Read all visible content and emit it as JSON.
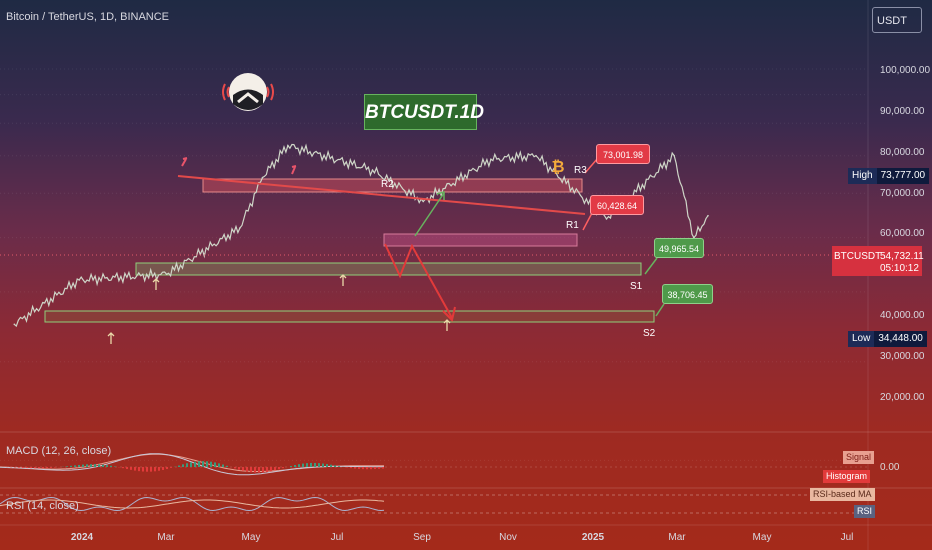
{
  "header": {
    "title": "Bitcoin / TetherUS, 1D, BINANCE",
    "currency": "USDT"
  },
  "colors": {
    "support_green": "#5ea84c",
    "resistance_red": "#e14a4a",
    "candle": "#cfd6c8",
    "macd_signal": "#e8a090",
    "histogram": "#e23a3a",
    "rsi_ma": "#e9b8a0",
    "rsi": "#aab3d0",
    "price_axis_label": "#d6313f",
    "high_low_label": "#1d2b57"
  },
  "overlay_label": "BTCUSDT.1D",
  "price_axis": {
    "ticks": [
      "100,000.00",
      "90,000.00",
      "80,000.00",
      "70,000.00",
      "60,000.00",
      "40,000.00",
      "30,000.00",
      "20,000.00"
    ],
    "high": {
      "label": "High",
      "value": "73,777.00"
    },
    "low": {
      "label": "Low",
      "value": "34,448.00"
    },
    "current": {
      "symbol": "BTCUSDT",
      "value": "54,732.11",
      "countdown": "05:10:12"
    }
  },
  "time_axis": {
    "ticks": [
      "2024",
      "Mar",
      "May",
      "Jul",
      "Sep",
      "Nov",
      "2025",
      "Mar",
      "May",
      "Jul"
    ]
  },
  "levels": [
    {
      "name": "R3",
      "price": "73,001.98"
    },
    {
      "name": "R2",
      "price": ""
    },
    {
      "name": "R1",
      "price": "60,428.64"
    },
    {
      "name": "S1",
      "price": "49,965.54"
    },
    {
      "name": "S2",
      "price": "38,706.45"
    }
  ],
  "chart_data": {
    "type": "line",
    "title": "Bitcoin / TetherUS, 1D, BINANCE",
    "y_scale": "log",
    "ylim": [
      20000,
      100000
    ],
    "x": [
      "2023-12-08",
      "2023-12-31",
      "2024-01-31",
      "2024-02-26",
      "2024-03-05",
      "2024-03-14",
      "2024-04-13",
      "2024-05-01",
      "2024-05-25",
      "2024-06-10",
      "2024-07-05",
      "2024-07-29",
      "2024-08-05",
      "2024-08-10"
    ],
    "series": [
      {
        "values": [
          35000,
          42000,
          43000,
          52000,
          64000,
          73000,
          66000,
          58000,
          69000,
          70000,
          54000,
          70000,
          50000,
          54700
        ]
      }
    ],
    "annotations": [
      {
        "type": "horizontal_zone",
        "label": "R3",
        "value": 73001.98
      },
      {
        "type": "horizontal_zone",
        "label": "R1",
        "value": 60428.64
      },
      {
        "type": "horizontal_zone",
        "label": "S1",
        "value": 49965.54
      },
      {
        "type": "horizontal_zone",
        "label": "S2",
        "value": 38706.45
      },
      {
        "type": "trendline",
        "label": "R2",
        "from": [
          "2024-03-14",
          75000
        ],
        "to": [
          "2024-12-05",
          63000
        ]
      }
    ],
    "indicators": [
      "MACD (12, 26, close)",
      "RSI (14, close)"
    ]
  },
  "indicators": {
    "macd_label": "MACD (12, 26, close)",
    "macd_zero": "0.00",
    "rsi_label": "RSI (14, close)",
    "legend": {
      "signal": "Signal",
      "histogram": "Histogram",
      "rsi_ma": "RSI-based MA",
      "rsi": "RSI"
    }
  }
}
